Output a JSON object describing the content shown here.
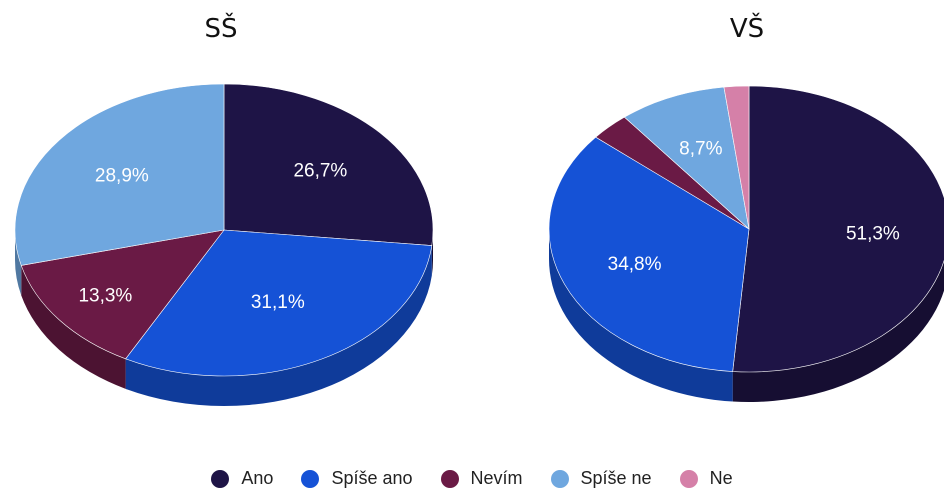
{
  "legend": [
    "Ano",
    "Spíše ano",
    "Nevím",
    "Spíše ne",
    "Ne"
  ],
  "colors": {
    "Ano": "#1e1446",
    "Spíše ano": "#1552d6",
    "Nevím": "#6a1a45",
    "Spíše ne": "#6fa7df",
    "Ne": "#d580a8"
  },
  "chart_data": [
    {
      "type": "pie",
      "title": "SŠ",
      "categories": [
        "Ano",
        "Spíše ano",
        "Nevím",
        "Spíše ne"
      ],
      "values": [
        26.7,
        31.1,
        13.3,
        28.9
      ],
      "labels": [
        "26,7%",
        "31,1%",
        "13,3%",
        "28,9%"
      ]
    },
    {
      "type": "pie",
      "title": "VŠ",
      "categories": [
        "Ano",
        "Spíše ano",
        "Nevím",
        "Spíše ne",
        "Ne"
      ],
      "values": [
        51.3,
        34.8,
        3.2,
        8.7,
        2.0
      ],
      "labels": [
        "51,3%",
        "34,8%",
        "",
        "8,7%",
        ""
      ]
    }
  ]
}
